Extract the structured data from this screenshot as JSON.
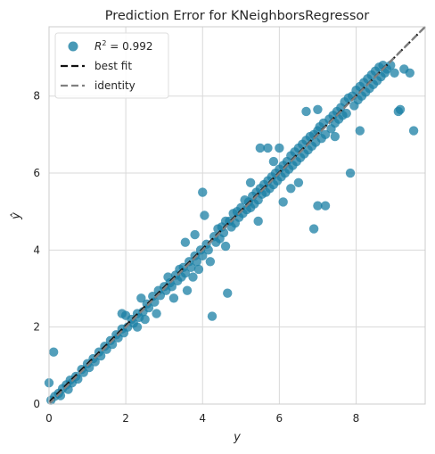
{
  "chart_data": {
    "type": "scatter",
    "title": "Prediction Error for KNeighborsRegressor",
    "xlabel": "y",
    "ylabel": "ŷ",
    "xlim": [
      0,
      9.8
    ],
    "ylim": [
      0,
      9.8
    ],
    "xticks": [
      "0",
      "2",
      "4",
      "6",
      "8"
    ],
    "yticks": [
      "0",
      "2",
      "4",
      "6",
      "8"
    ],
    "grid": true,
    "legend_position": "top-left",
    "legend": [
      {
        "label_prefix": "R",
        "label_sup": "2",
        "label_suffix": " = 0.992",
        "kind": "marker",
        "color": "#1a7fa4"
      },
      {
        "label": "best fit",
        "kind": "dashed-line",
        "color": "#111111"
      },
      {
        "label": "identity",
        "kind": "dashed-line",
        "color": "#808080"
      }
    ],
    "series": [
      {
        "name": "R² = 0.992",
        "color": "#1a7fa4",
        "points": [
          [
            0.0,
            0.55
          ],
          [
            0.12,
            1.35
          ],
          [
            0.05,
            0.1
          ],
          [
            0.15,
            0.2
          ],
          [
            0.25,
            0.28
          ],
          [
            0.35,
            0.4
          ],
          [
            0.3,
            0.22
          ],
          [
            0.45,
            0.5
          ],
          [
            0.5,
            0.38
          ],
          [
            0.55,
            0.62
          ],
          [
            0.6,
            0.55
          ],
          [
            0.7,
            0.72
          ],
          [
            0.75,
            0.65
          ],
          [
            0.85,
            0.9
          ],
          [
            0.9,
            0.82
          ],
          [
            1.0,
            1.05
          ],
          [
            1.05,
            0.95
          ],
          [
            1.15,
            1.18
          ],
          [
            1.2,
            1.1
          ],
          [
            1.3,
            1.35
          ],
          [
            1.35,
            1.25
          ],
          [
            1.45,
            1.5
          ],
          [
            1.5,
            1.42
          ],
          [
            1.6,
            1.65
          ],
          [
            1.65,
            1.55
          ],
          [
            1.75,
            1.8
          ],
          [
            1.8,
            1.72
          ],
          [
            1.9,
            1.95
          ],
          [
            1.95,
            1.85
          ],
          [
            2.0,
            2.3
          ],
          [
            2.05,
            2.0
          ],
          [
            2.15,
            2.2
          ],
          [
            2.2,
            2.1
          ],
          [
            2.3,
            2.35
          ],
          [
            2.35,
            2.25
          ],
          [
            2.4,
            2.75
          ],
          [
            2.45,
            2.4
          ],
          [
            2.55,
            2.6
          ],
          [
            2.6,
            2.5
          ],
          [
            2.7,
            2.8
          ],
          [
            2.75,
            2.65
          ],
          [
            2.8,
            2.35
          ],
          [
            2.85,
            2.95
          ],
          [
            2.9,
            2.82
          ],
          [
            3.0,
            3.05
          ],
          [
            3.05,
            2.95
          ],
          [
            3.1,
            3.3
          ],
          [
            3.15,
            3.15
          ],
          [
            3.2,
            3.05
          ],
          [
            3.25,
            2.75
          ],
          [
            3.3,
            3.35
          ],
          [
            3.35,
            3.2
          ],
          [
            3.4,
            3.5
          ],
          [
            3.45,
            3.3
          ],
          [
            3.5,
            3.55
          ],
          [
            3.55,
            3.4
          ],
          [
            3.6,
            2.95
          ],
          [
            3.65,
            3.7
          ],
          [
            3.7,
            3.55
          ],
          [
            3.75,
            3.3
          ],
          [
            3.8,
            3.85
          ],
          [
            3.85,
            3.7
          ],
          [
            3.9,
            3.5
          ],
          [
            3.95,
            4.0
          ],
          [
            4.0,
            3.85
          ],
          [
            4.05,
            4.9
          ],
          [
            4.1,
            4.15
          ],
          [
            4.15,
            4.0
          ],
          [
            4.2,
            3.7
          ],
          [
            4.25,
            2.28
          ],
          [
            4.3,
            4.35
          ],
          [
            4.35,
            4.2
          ],
          [
            4.4,
            4.55
          ],
          [
            4.45,
            4.3
          ],
          [
            4.5,
            4.6
          ],
          [
            4.55,
            4.45
          ],
          [
            4.6,
            4.75
          ],
          [
            4.65,
            2.88
          ],
          [
            4.7,
            4.75
          ],
          [
            4.75,
            4.6
          ],
          [
            4.8,
            4.95
          ],
          [
            4.85,
            4.7
          ],
          [
            4.9,
            5.0
          ],
          [
            4.95,
            4.85
          ],
          [
            5.0,
            5.1
          ],
          [
            5.05,
            4.95
          ],
          [
            5.1,
            5.3
          ],
          [
            5.15,
            5.05
          ],
          [
            5.2,
            5.25
          ],
          [
            5.25,
            5.1
          ],
          [
            5.3,
            5.4
          ],
          [
            5.35,
            5.2
          ],
          [
            5.4,
            5.5
          ],
          [
            5.45,
            5.3
          ],
          [
            5.5,
            5.6
          ],
          [
            5.55,
            5.45
          ],
          [
            5.6,
            5.7
          ],
          [
            5.65,
            5.5
          ],
          [
            5.7,
            5.8
          ],
          [
            5.75,
            5.6
          ],
          [
            5.8,
            5.9
          ],
          [
            5.85,
            5.7
          ],
          [
            5.9,
            6.0
          ],
          [
            5.95,
            5.8
          ],
          [
            6.0,
            6.1
          ],
          [
            6.05,
            5.9
          ],
          [
            6.1,
            6.2
          ],
          [
            6.15,
            6.0
          ],
          [
            5.7,
            6.65
          ],
          [
            5.85,
            6.3
          ],
          [
            6.2,
            6.3
          ],
          [
            6.25,
            6.1
          ],
          [
            6.3,
            6.45
          ],
          [
            6.35,
            6.2
          ],
          [
            6.4,
            6.55
          ],
          [
            6.45,
            6.3
          ],
          [
            6.5,
            6.65
          ],
          [
            6.55,
            6.4
          ],
          [
            6.6,
            6.75
          ],
          [
            6.65,
            6.5
          ],
          [
            6.7,
            6.85
          ],
          [
            6.75,
            6.6
          ],
          [
            6.8,
            6.95
          ],
          [
            6.85,
            6.7
          ],
          [
            6.9,
            7.0
          ],
          [
            6.95,
            6.8
          ],
          [
            7.0,
            7.1
          ],
          [
            6.5,
            5.75
          ],
          [
            6.9,
            4.55
          ],
          [
            7.0,
            5.15
          ],
          [
            7.05,
            7.2
          ],
          [
            7.1,
            6.9
          ],
          [
            7.15,
            7.3
          ],
          [
            7.2,
            7.0
          ],
          [
            7.3,
            7.4
          ],
          [
            7.35,
            7.15
          ],
          [
            7.4,
            7.5
          ],
          [
            7.45,
            7.3
          ],
          [
            7.5,
            7.6
          ],
          [
            7.55,
            7.4
          ],
          [
            7.6,
            7.7
          ],
          [
            7.65,
            7.5
          ],
          [
            7.7,
            7.85
          ],
          [
            7.75,
            7.55
          ],
          [
            7.8,
            7.95
          ],
          [
            7.85,
            6.0
          ],
          [
            7.9,
            8.0
          ],
          [
            7.95,
            7.75
          ],
          [
            8.0,
            8.15
          ],
          [
            8.05,
            7.9
          ],
          [
            8.1,
            8.25
          ],
          [
            8.15,
            8.0
          ],
          [
            8.2,
            8.35
          ],
          [
            8.25,
            8.1
          ],
          [
            8.3,
            8.45
          ],
          [
            8.35,
            8.2
          ],
          [
            8.4,
            8.55
          ],
          [
            8.45,
            8.3
          ],
          [
            8.5,
            8.65
          ],
          [
            8.55,
            8.4
          ],
          [
            8.6,
            8.75
          ],
          [
            8.65,
            8.5
          ],
          [
            8.7,
            8.8
          ],
          [
            8.75,
            8.6
          ],
          [
            8.8,
            8.7
          ],
          [
            8.9,
            8.8
          ],
          [
            9.0,
            8.6
          ],
          [
            9.15,
            7.65
          ],
          [
            9.25,
            8.7
          ],
          [
            9.5,
            7.1
          ],
          [
            9.4,
            8.6
          ],
          [
            9.1,
            7.6
          ],
          [
            7.2,
            5.15
          ],
          [
            5.5,
            6.65
          ],
          [
            6.1,
            5.25
          ],
          [
            5.45,
            4.75
          ],
          [
            4.0,
            5.5
          ],
          [
            6.7,
            7.6
          ],
          [
            7.45,
            6.95
          ],
          [
            8.1,
            7.1
          ],
          [
            3.55,
            4.2
          ],
          [
            3.8,
            4.4
          ],
          [
            2.3,
            2.0
          ],
          [
            1.9,
            2.35
          ],
          [
            2.5,
            2.2
          ],
          [
            4.6,
            4.1
          ],
          [
            5.25,
            5.75
          ],
          [
            6.0,
            6.65
          ],
          [
            6.3,
            5.6
          ],
          [
            7.0,
            7.65
          ]
        ]
      }
    ],
    "best_fit": {
      "x": [
        0,
        9.8
      ],
      "y": [
        0.05,
        9.8
      ]
    },
    "identity": {
      "x": [
        0,
        9.8
      ],
      "y": [
        0,
        9.8
      ]
    }
  }
}
